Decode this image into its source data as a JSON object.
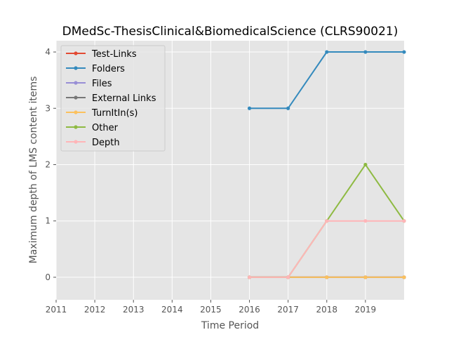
{
  "chart_data": {
    "type": "line",
    "title": "DMedSc-ThesisClinical&BiomedicalScience (CLRS90021)",
    "xlabel": "Time Period",
    "ylabel": "Maximum depth of LMS content items",
    "x_ticks": [
      "2011",
      "2012",
      "2013",
      "2014",
      "2015",
      "2016",
      "2017",
      "2018",
      "2019"
    ],
    "y_ticks": [
      "0",
      "1",
      "2",
      "3",
      "4"
    ],
    "xlim": [
      2011,
      2020
    ],
    "ylim": [
      -0.4,
      4.2
    ],
    "x": [
      2016,
      2017,
      2018,
      2019,
      2020
    ],
    "grid": true,
    "legend_position": "top-left",
    "series": [
      {
        "name": "Test-Links",
        "color": "#E24A33",
        "values": [
          0,
          0,
          0,
          0,
          0
        ]
      },
      {
        "name": "Folders",
        "color": "#348ABD",
        "values": [
          3,
          3,
          4,
          4,
          4
        ]
      },
      {
        "name": "Files",
        "color": "#988ED5",
        "values": [
          0,
          0,
          0,
          0,
          0
        ]
      },
      {
        "name": "External Links",
        "color": "#777777",
        "values": [
          0,
          0,
          0,
          0,
          0
        ]
      },
      {
        "name": "TurnItIn(s)",
        "color": "#FBC15E",
        "values": [
          0,
          0,
          0,
          0,
          0
        ]
      },
      {
        "name": "Other",
        "color": "#8EBA42",
        "values": [
          0,
          0,
          1,
          2,
          1
        ]
      },
      {
        "name": "Depth",
        "color": "#FFB5B8",
        "values": [
          0,
          0,
          1,
          1,
          1
        ]
      }
    ]
  }
}
